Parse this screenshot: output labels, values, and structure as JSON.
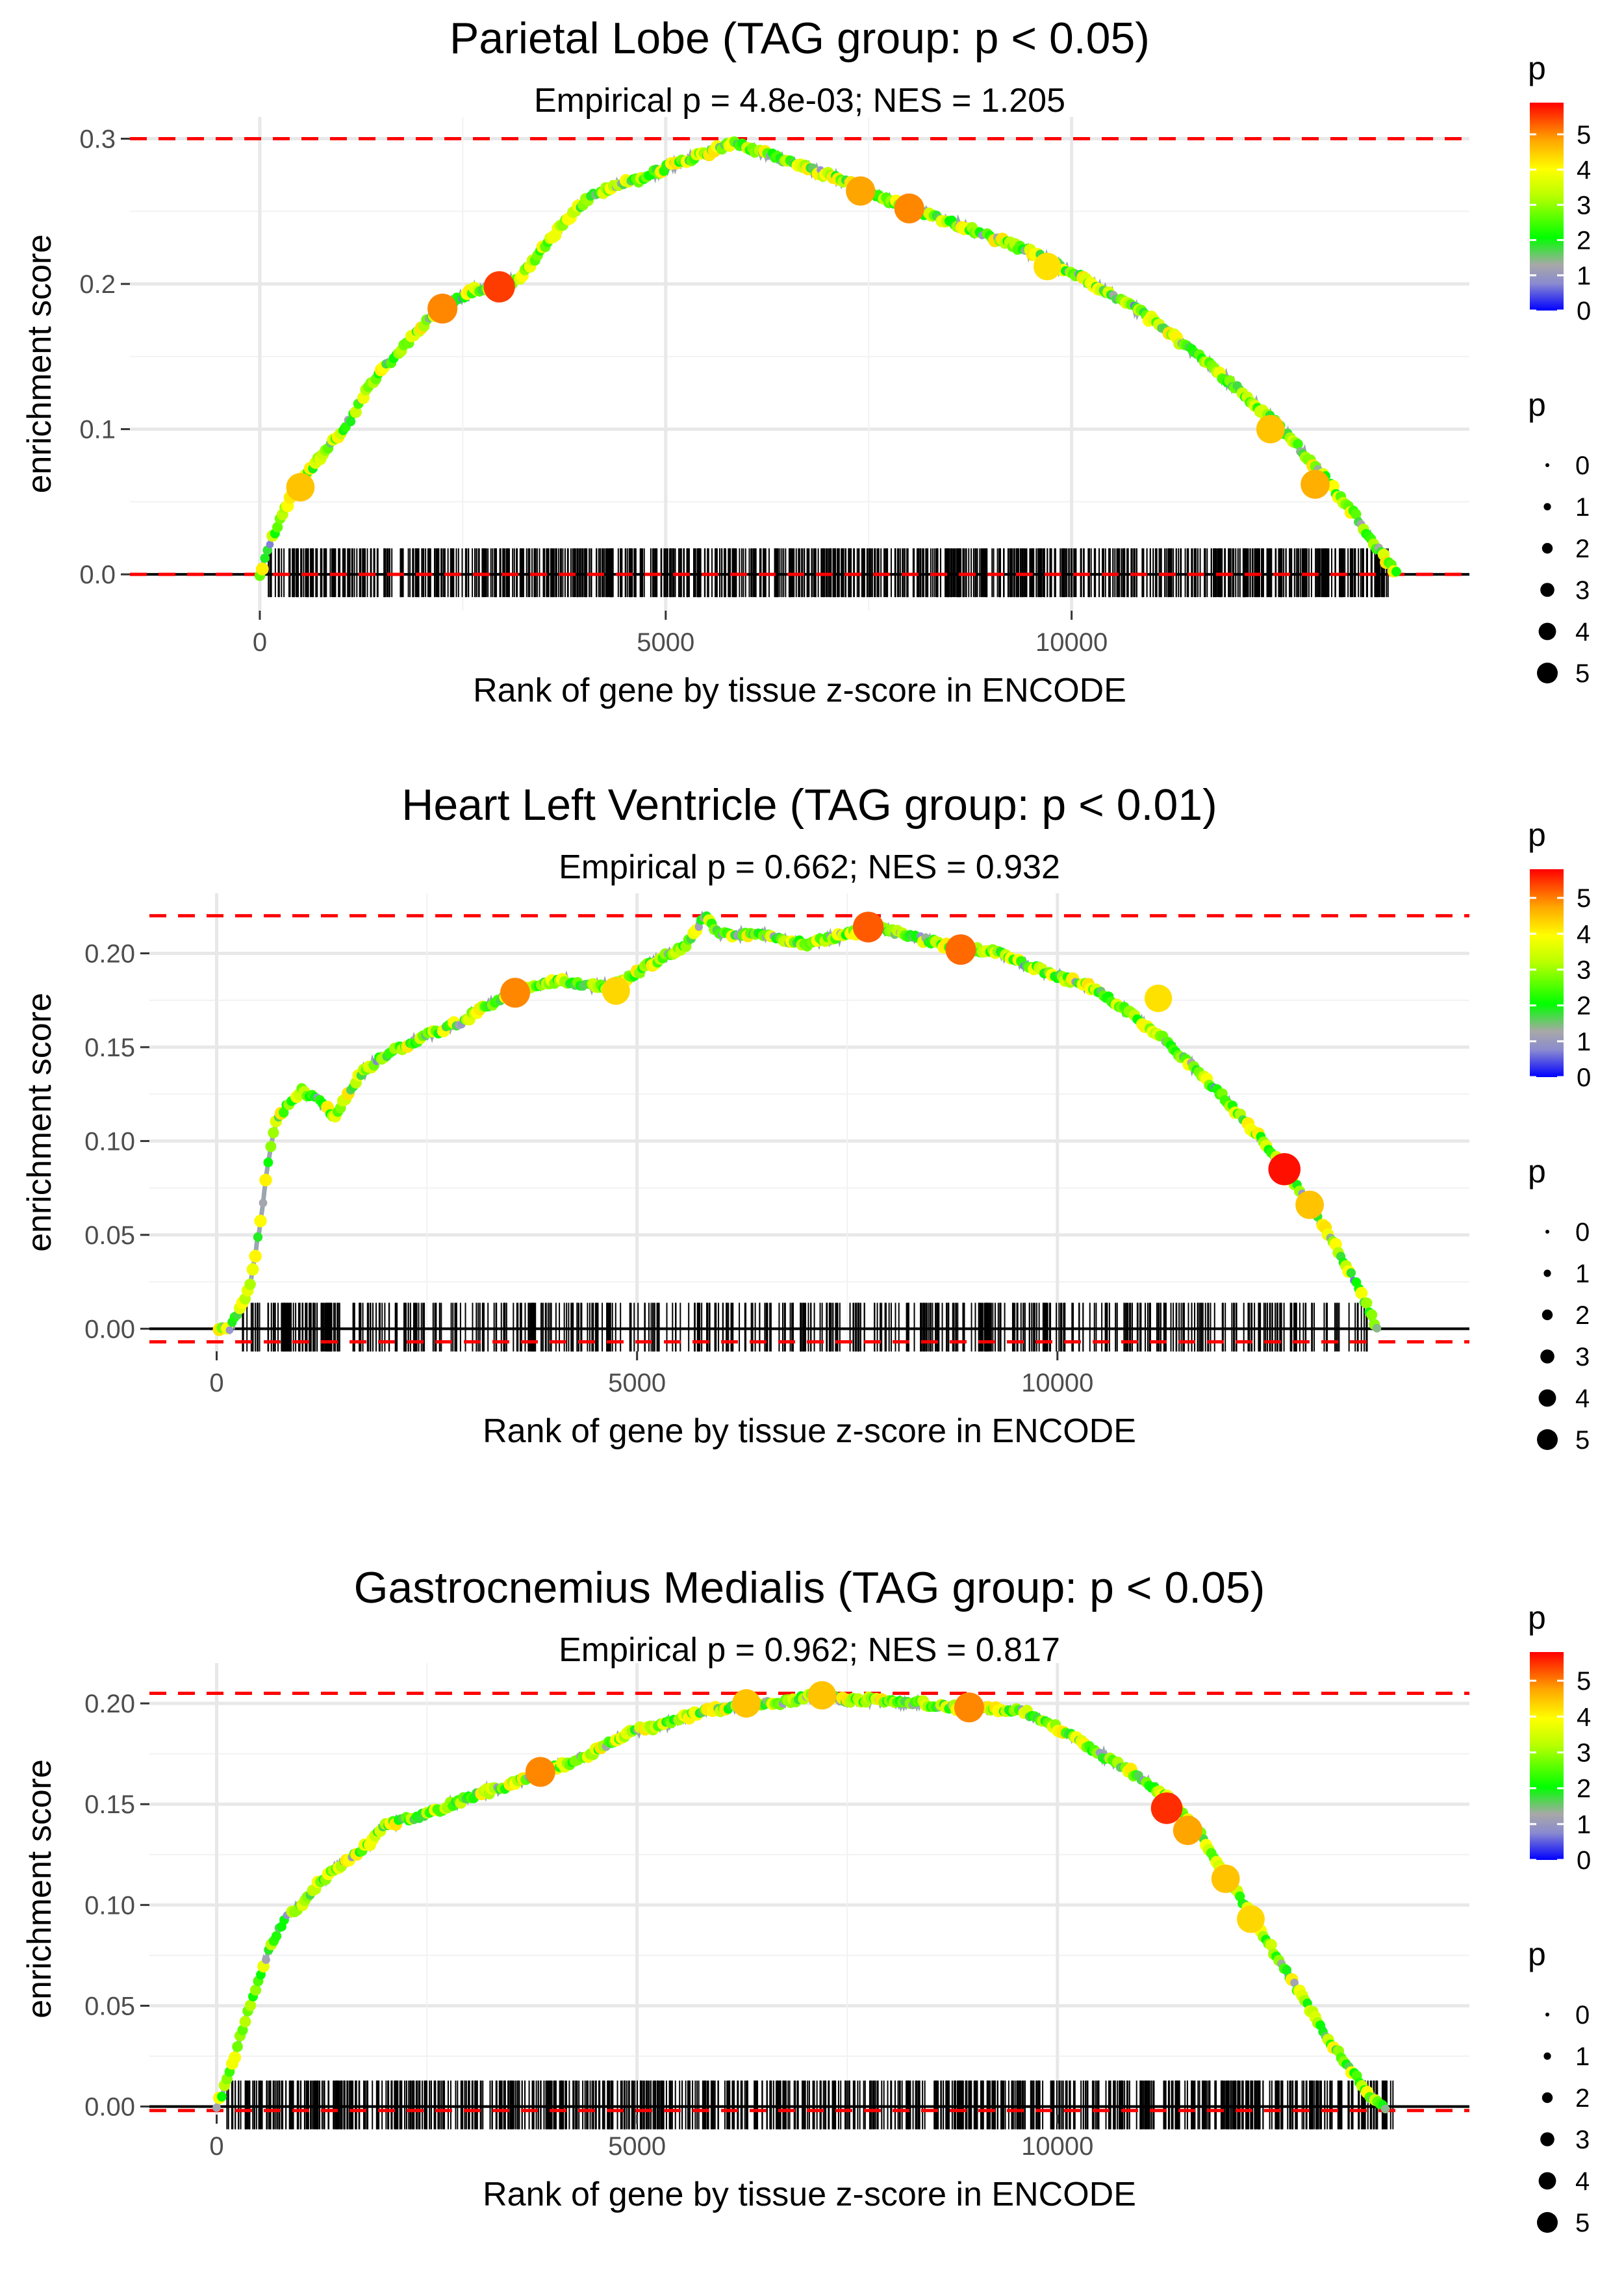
{
  "figure": {
    "title": "GSEA-style enrichment plots (three tissues)"
  },
  "chart_data": [
    {
      "type": "line",
      "title": "Parietal Lobe (TAG group: p < 0.05)",
      "subtitle": "Empirical p = 4.8e-03; NES = 1.205",
      "xlabel": "Rank of gene by tissue z-score in ENCODE",
      "ylabel": "enrichment score",
      "xlim": [
        -1600,
        14900
      ],
      "ylim": [
        -0.025,
        0.315
      ],
      "xticks": [
        0,
        5000,
        10000
      ],
      "xtick_labels": [
        "0",
        "5000",
        "10000"
      ],
      "yticks": [
        0.0,
        0.1,
        0.2,
        0.3
      ],
      "ytick_labels": [
        "0.0",
        "0.1",
        "0.2",
        "0.3"
      ],
      "max_es": 0.3,
      "min_es": 0.0,
      "series": [
        {
          "name": "running enrichment score",
          "x": [
            0,
            150,
            300,
            500,
            700,
            900,
            1100,
            1300,
            1500,
            1700,
            1900,
            2100,
            2300,
            2500,
            2700,
            2850,
            3000,
            3200,
            3500,
            3800,
            4100,
            4400,
            4700,
            5000,
            5300,
            5600,
            5850,
            6100,
            6500,
            7000,
            7500,
            8000,
            8500,
            9000,
            9500,
            10000,
            10500,
            11000,
            11500,
            12000,
            12500,
            13000,
            13500,
            13800,
            14000
          ],
          "y": [
            0.0,
            0.025,
            0.045,
            0.062,
            0.078,
            0.092,
            0.105,
            0.125,
            0.14,
            0.152,
            0.165,
            0.177,
            0.185,
            0.192,
            0.197,
            0.195,
            0.198,
            0.205,
            0.225,
            0.245,
            0.262,
            0.268,
            0.272,
            0.28,
            0.286,
            0.292,
            0.298,
            0.292,
            0.285,
            0.275,
            0.263,
            0.252,
            0.243,
            0.233,
            0.222,
            0.208,
            0.193,
            0.175,
            0.153,
            0.13,
            0.105,
            0.075,
            0.04,
            0.015,
            0.0
          ]
        }
      ],
      "highlight_points": [
        {
          "x": 500,
          "y": 0.06,
          "p": 4.5
        },
        {
          "x": 2250,
          "y": 0.183,
          "p": 5
        },
        {
          "x": 2950,
          "y": 0.198,
          "p": 5.5
        },
        {
          "x": 7400,
          "y": 0.264,
          "p": 4.8
        },
        {
          "x": 8000,
          "y": 0.252,
          "p": 5
        },
        {
          "x": 9700,
          "y": 0.212,
          "p": 4.2
        },
        {
          "x": 12450,
          "y": 0.1,
          "p": 4.5
        },
        {
          "x": 13000,
          "y": 0.062,
          "p": 4.7
        }
      ],
      "rug": {
        "min_rank": 100,
        "max_rank": 13900,
        "ticks": 950,
        "seed": 11
      },
      "legend_colorbar": {
        "title": "p",
        "labels": [
          "0",
          "1",
          "2",
          "3",
          "4",
          "5"
        ],
        "max": 5.9
      },
      "legend_size": {
        "title": "p",
        "labels": [
          "0",
          "1",
          "2",
          "3",
          "4",
          "5"
        ]
      }
    },
    {
      "type": "line",
      "title": "Heart Left Ventricle (TAG group: p < 0.01)",
      "subtitle": "Empirical p = 0.662; NES = 0.932",
      "xlabel": "Rank of gene by tissue z-score in ENCODE",
      "ylabel": "enrichment score",
      "xlim": [
        -800,
        14900
      ],
      "ylim": [
        -0.012,
        0.232
      ],
      "xticks": [
        0,
        5000,
        10000
      ],
      "xtick_labels": [
        "0",
        "5000",
        "10000"
      ],
      "yticks": [
        0.0,
        0.05,
        0.1,
        0.15,
        0.2
      ],
      "ytick_labels": [
        "0.00",
        "0.05",
        "0.10",
        "0.15",
        "0.20"
      ],
      "max_es": 0.22,
      "min_es": -0.007,
      "series": [
        {
          "name": "running enrichment score",
          "x": [
            0,
            150,
            300,
            400,
            500,
            600,
            700,
            850,
            1000,
            1200,
            1400,
            1500,
            1700,
            2000,
            2300,
            2600,
            2900,
            3200,
            3500,
            3800,
            4100,
            4400,
            4700,
            5000,
            5300,
            5600,
            5800,
            6000,
            6500,
            7000,
            7500,
            7800,
            8200,
            8600,
            8900,
            9300,
            9700,
            10000,
            10400,
            10800,
            11200,
            11600,
            12000,
            12400,
            12700,
            13000,
            13300,
            13600,
            13800
          ],
          "y": [
            0.0,
            0.0,
            0.012,
            0.025,
            0.05,
            0.085,
            0.11,
            0.12,
            0.127,
            0.122,
            0.113,
            0.12,
            0.135,
            0.146,
            0.152,
            0.158,
            0.163,
            0.172,
            0.178,
            0.182,
            0.186,
            0.183,
            0.182,
            0.19,
            0.198,
            0.205,
            0.22,
            0.21,
            0.21,
            0.205,
            0.21,
            0.214,
            0.21,
            0.205,
            0.203,
            0.2,
            0.193,
            0.188,
            0.182,
            0.17,
            0.157,
            0.14,
            0.122,
            0.102,
            0.085,
            0.066,
            0.045,
            0.02,
            0.0
          ]
        }
      ],
      "highlight_points": [
        {
          "x": 3550,
          "y": 0.179,
          "p": 5
        },
        {
          "x": 7750,
          "y": 0.214,
          "p": 5.3
        },
        {
          "x": 8850,
          "y": 0.202,
          "p": 5.2
        },
        {
          "x": 12700,
          "y": 0.085,
          "p": 5.8
        },
        {
          "x": 4750,
          "y": 0.18,
          "p": 4.3
        },
        {
          "x": 11200,
          "y": 0.176,
          "p": 4.2
        },
        {
          "x": 13000,
          "y": 0.066,
          "p": 4.5
        }
      ],
      "rug": {
        "min_rank": 300,
        "max_rank": 13700,
        "ticks": 560,
        "seed": 23
      },
      "legend_colorbar": {
        "title": "p",
        "labels": [
          "0",
          "1",
          "2",
          "3",
          "4",
          "5"
        ],
        "max": 5.8
      },
      "legend_size": {
        "title": "p",
        "labels": [
          "0",
          "1",
          "2",
          "3",
          "4",
          "5"
        ]
      }
    },
    {
      "type": "line",
      "title": "Gastrocnemius Medialis (TAG group: p < 0.05)",
      "subtitle": "Empirical p = 0.962; NES = 0.817",
      "xlabel": "Rank of gene by tissue z-score in ENCODE",
      "ylabel": "enrichment score",
      "xlim": [
        -800,
        14900
      ],
      "ylim": [
        -0.004,
        0.22
      ],
      "xticks": [
        0,
        5000,
        10000
      ],
      "xtick_labels": [
        "0",
        "5000",
        "10000"
      ],
      "yticks": [
        0.0,
        0.05,
        0.1,
        0.15,
        0.2
      ],
      "ytick_labels": [
        "0.00",
        "0.05",
        "0.10",
        "0.15",
        "0.20"
      ],
      "max_es": 0.205,
      "min_es": -0.002,
      "series": [
        {
          "name": "running enrichment score",
          "x": [
            0,
            100,
            250,
            400,
            550,
            700,
            850,
            1000,
            1200,
            1400,
            1600,
            1800,
            2000,
            2200,
            2500,
            2800,
            3100,
            3400,
            3700,
            4000,
            4300,
            4600,
            4900,
            5200,
            5500,
            5800,
            6100,
            6400,
            6700,
            7000,
            7200,
            7500,
            7800,
            8100,
            8400,
            8700,
            9000,
            9300,
            9600,
            9900,
            10200,
            10500,
            10800,
            11100,
            11400,
            11700,
            12000,
            12300,
            12600,
            12900,
            13200,
            13500,
            13700,
            13900
          ],
          "y": [
            0.0,
            0.01,
            0.03,
            0.05,
            0.07,
            0.085,
            0.095,
            0.1,
            0.11,
            0.118,
            0.123,
            0.13,
            0.14,
            0.142,
            0.145,
            0.15,
            0.155,
            0.158,
            0.163,
            0.168,
            0.172,
            0.178,
            0.186,
            0.188,
            0.192,
            0.196,
            0.198,
            0.2,
            0.2,
            0.203,
            0.204,
            0.201,
            0.202,
            0.2,
            0.2,
            0.198,
            0.198,
            0.197,
            0.196,
            0.19,
            0.183,
            0.175,
            0.168,
            0.16,
            0.15,
            0.135,
            0.115,
            0.095,
            0.075,
            0.055,
            0.035,
            0.018,
            0.005,
            0.0
          ]
        }
      ],
      "highlight_points": [
        {
          "x": 3850,
          "y": 0.166,
          "p": 5
        },
        {
          "x": 6300,
          "y": 0.2,
          "p": 4.5
        },
        {
          "x": 7200,
          "y": 0.204,
          "p": 4.5
        },
        {
          "x": 8950,
          "y": 0.198,
          "p": 5
        },
        {
          "x": 11300,
          "y": 0.148,
          "p": 5.6
        },
        {
          "x": 11550,
          "y": 0.137,
          "p": 4.8
        },
        {
          "x": 12000,
          "y": 0.113,
          "p": 4.5
        },
        {
          "x": 12300,
          "y": 0.093,
          "p": 4.3
        }
      ],
      "rug": {
        "min_rank": 100,
        "max_rank": 14000,
        "ticks": 900,
        "seed": 37
      },
      "legend_colorbar": {
        "title": "p",
        "labels": [
          "0",
          "1",
          "2",
          "3",
          "4",
          "5"
        ],
        "max": 5.8
      },
      "legend_size": {
        "title": "p",
        "labels": [
          "0",
          "1",
          "2",
          "3",
          "4",
          "5"
        ]
      }
    }
  ]
}
